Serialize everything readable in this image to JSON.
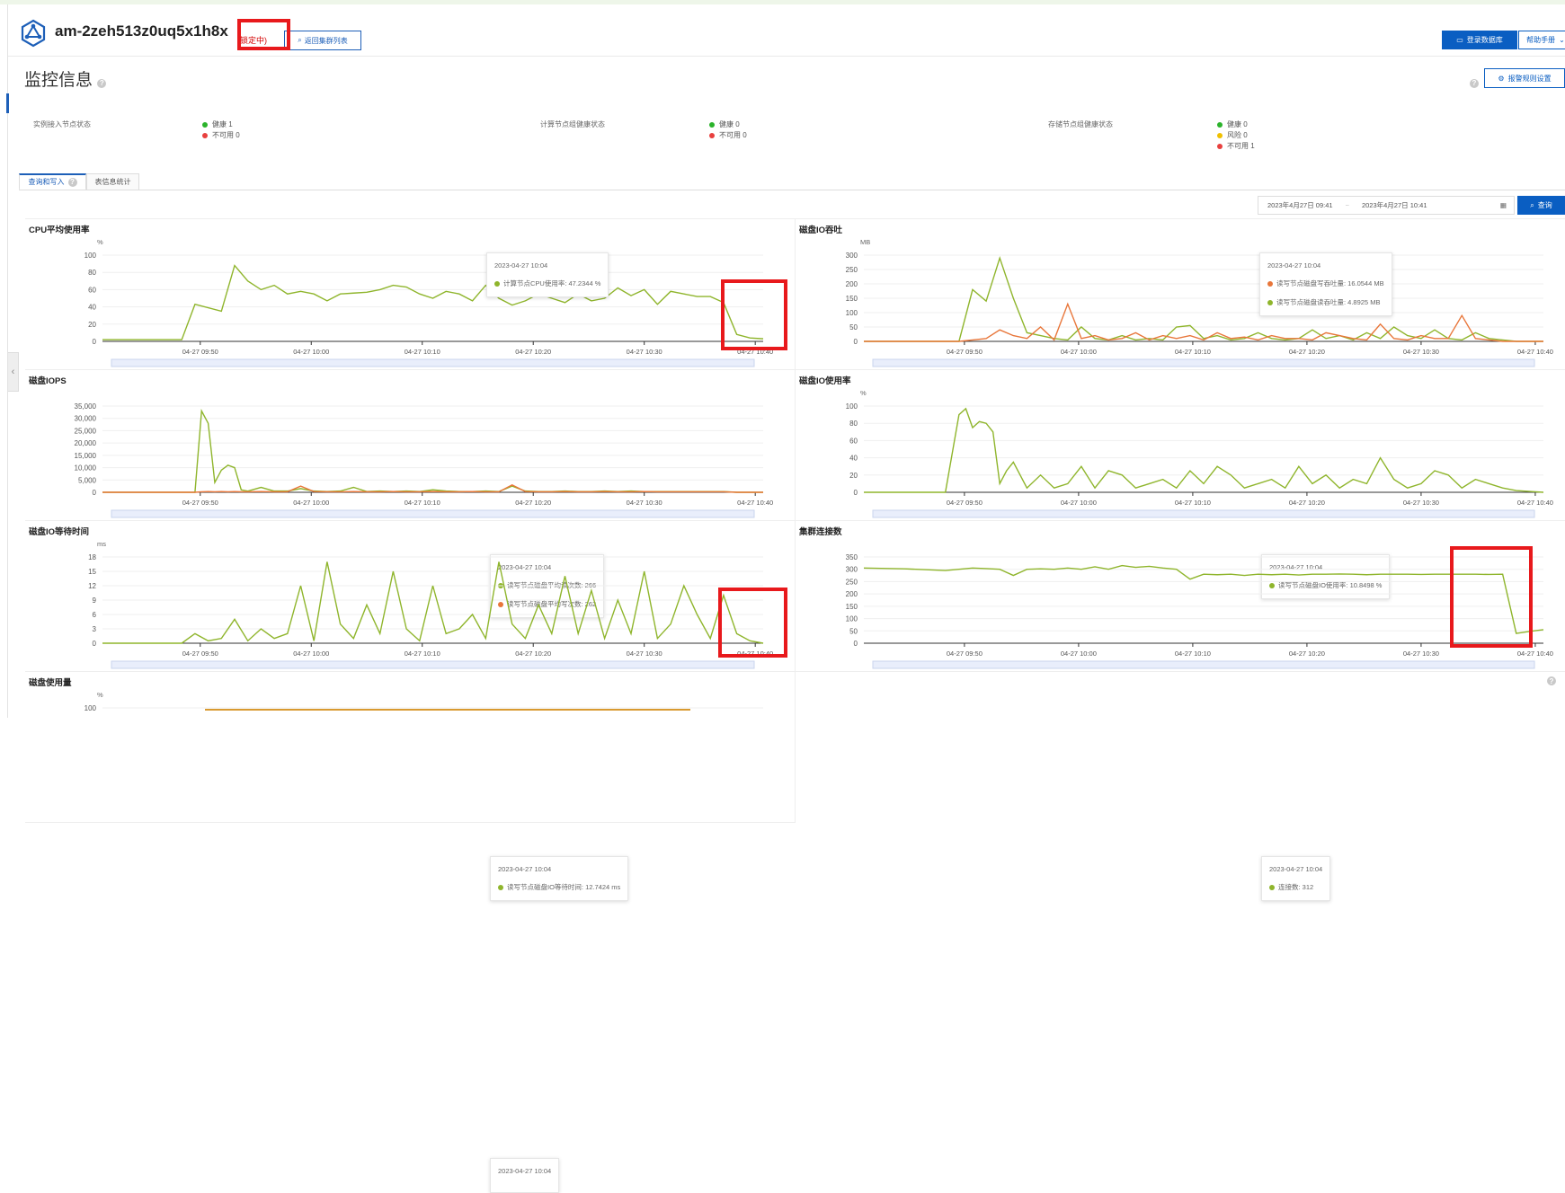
{
  "header": {
    "cluster_id": "am-2zeh513z0uq5x1h8x",
    "lock_status": "(锁定中)",
    "back_button": "返回集群列表",
    "login_button": "登录数据库",
    "help_button": "帮助手册"
  },
  "page": {
    "title": "监控信息",
    "alert_button": "报警规则设置"
  },
  "status": {
    "groups": [
      {
        "label": "实例接入节点状态",
        "items": [
          {
            "text": "健康 1",
            "color": "#2bb32b"
          },
          {
            "text": "不可用 0",
            "color": "#e8403e"
          }
        ]
      },
      {
        "label": "计算节点组健康状态",
        "items": [
          {
            "text": "健康 0",
            "color": "#2bb32b"
          },
          {
            "text": "不可用 0",
            "color": "#e8403e"
          }
        ]
      },
      {
        "label": "存储节点组健康状态",
        "items": [
          {
            "text": "健康 0",
            "color": "#2bb32b"
          },
          {
            "text": "风险 0",
            "color": "#f0c000"
          },
          {
            "text": "不可用 1",
            "color": "#e8403e"
          }
        ]
      }
    ]
  },
  "tabs": [
    {
      "label": "查询和写入"
    },
    {
      "label": "表信息统计"
    }
  ],
  "filter": {
    "start": "2023年4月27日 09:41",
    "end": "2023年4月27日 10:41",
    "query_button": "查询"
  },
  "colors": {
    "green": "#8fb52c",
    "orange": "#e8763a",
    "accent": "#0a5ec2",
    "highlight": "#e8191c"
  },
  "x_ticks_left": [
    "04-27 09:50",
    "04-27 10:00",
    "04-27 10:10",
    "04-27 10:20",
    "04-27 10:30",
    "04-27 10:40"
  ],
  "x_ticks_right": [
    "04-27 09:50",
    "04-27 10:00",
    "04-27 10:10",
    "04-27 10:20",
    "04-27 10:30",
    "04-27 10:40"
  ],
  "charts": [
    {
      "title": "CPU平均使用率",
      "unit": "%",
      "tip": {
        "time": "2023-04-27 10:04",
        "rows": [
          {
            "text": "计算节点CPU使用率: 47.2344 %",
            "color": "#8fb52c"
          }
        ]
      }
    },
    {
      "title": "磁盘IO吞吐",
      "unit": "MB",
      "tip": {
        "time": "2023-04-27 10:04",
        "rows": [
          {
            "text": "读写节点磁盘写吞吐量: 16.0544 MB",
            "color": "#e8763a"
          },
          {
            "text": "读写节点磁盘读吞吐量: 4.8925 MB",
            "color": "#8fb52c"
          }
        ]
      }
    },
    {
      "title": "磁盘IOPS",
      "unit": "",
      "tip": {
        "time": "2023-04-27 10:04",
        "rows": [
          {
            "text": "读写节点磁盘平均读次数: 266",
            "color": "#8fb52c"
          },
          {
            "text": "读写节点磁盘平均写次数: 262",
            "color": "#e8763a"
          }
        ]
      }
    },
    {
      "title": "磁盘IO使用率",
      "unit": "%",
      "tip": {
        "time": "2023-04-27 10:04",
        "rows": [
          {
            "text": "读写节点磁盘IO使用率: 10.8498 %",
            "color": "#8fb52c"
          }
        ]
      }
    },
    {
      "title": "磁盘IO等待时间",
      "unit": "ms",
      "tip": {
        "time": "2023-04-27 10:04",
        "rows": [
          {
            "text": "读写节点磁盘IO等待时间: 12.7424 ms",
            "color": "#8fb52c"
          }
        ]
      }
    },
    {
      "title": "集群连接数",
      "unit": "",
      "tip": {
        "time": "2023-04-27 10:04",
        "rows": [
          {
            "text": "连接数: 312",
            "color": "#8fb52c"
          }
        ]
      }
    },
    {
      "title": "磁盘使用量",
      "unit": "%",
      "tip": {
        "time": "2023-04-27 10:04",
        "rows": []
      }
    }
  ],
  "chart_data": [
    {
      "type": "line",
      "title": "CPU平均使用率",
      "ylabel": "%",
      "ylim": [
        0,
        100
      ],
      "yticks": [
        0,
        20,
        40,
        60,
        80,
        100
      ],
      "x": [
        0,
        4,
        8,
        12,
        14,
        18,
        20,
        22,
        24,
        26,
        28,
        30,
        32,
        34,
        36,
        38,
        40,
        42,
        44,
        46,
        48,
        50,
        52,
        54,
        56,
        58,
        60,
        62,
        64,
        66,
        68,
        70,
        72,
        74,
        76,
        78,
        80,
        82,
        84,
        86,
        88,
        90,
        92,
        94,
        96,
        98,
        100
      ],
      "series": [
        {
          "name": "计算节点CPU使用率",
          "color": "#8fb52c",
          "values": [
            2,
            2,
            2,
            2,
            43,
            35,
            88,
            70,
            60,
            65,
            55,
            58,
            55,
            47,
            55,
            56,
            57,
            60,
            65,
            63,
            55,
            50,
            58,
            55,
            47,
            65,
            50,
            42,
            47,
            55,
            50,
            45,
            55,
            47,
            50,
            62,
            53,
            60,
            43,
            58,
            55,
            52,
            52,
            45,
            8,
            4,
            3
          ]
        }
      ]
    },
    {
      "type": "line",
      "title": "磁盘IO吞吐",
      "ylabel": "MB",
      "ylim": [
        0,
        300
      ],
      "yticks": [
        0,
        50,
        100,
        150,
        200,
        250,
        300
      ],
      "x": [
        0,
        4,
        8,
        12,
        14,
        16,
        18,
        20,
        22,
        24,
        26,
        28,
        30,
        32,
        34,
        36,
        38,
        40,
        42,
        44,
        46,
        48,
        50,
        52,
        54,
        56,
        58,
        60,
        62,
        64,
        66,
        68,
        70,
        72,
        74,
        76,
        78,
        80,
        82,
        84,
        86,
        88,
        90,
        92,
        94,
        96,
        98,
        100
      ],
      "series": [
        {
          "name": "读写节点磁盘读吞吐量",
          "color": "#8fb52c",
          "values": [
            0,
            0,
            0,
            0,
            0,
            180,
            140,
            290,
            150,
            30,
            20,
            10,
            5,
            50,
            10,
            5,
            20,
            5,
            10,
            5,
            50,
            55,
            10,
            20,
            5,
            10,
            30,
            10,
            5,
            10,
            40,
            10,
            20,
            5,
            30,
            10,
            50,
            20,
            10,
            40,
            10,
            5,
            30,
            10,
            5,
            0,
            0,
            0
          ]
        },
        {
          "name": "读写节点磁盘写吞吐量",
          "color": "#e8763a",
          "values": [
            0,
            0,
            0,
            0,
            0,
            5,
            10,
            40,
            20,
            10,
            50,
            5,
            130,
            10,
            20,
            5,
            10,
            30,
            5,
            20,
            10,
            20,
            5,
            30,
            10,
            15,
            5,
            20,
            10,
            10,
            5,
            30,
            20,
            10,
            5,
            60,
            10,
            5,
            20,
            10,
            10,
            90,
            10,
            5,
            0,
            0,
            0,
            0
          ]
        }
      ]
    },
    {
      "type": "line",
      "title": "磁盘IOPS",
      "ylabel": "",
      "ylim": [
        0,
        35000
      ],
      "yticks": [
        0,
        5000,
        10000,
        15000,
        20000,
        25000,
        30000,
        35000
      ],
      "x": [
        0,
        10,
        14,
        15,
        16,
        17,
        18,
        19,
        20,
        21,
        22,
        24,
        26,
        28,
        30,
        32,
        34,
        36,
        38,
        40,
        42,
        44,
        46,
        48,
        50,
        52,
        54,
        56,
        58,
        60,
        62,
        64,
        66,
        68,
        70,
        72,
        74,
        76,
        78,
        80,
        82,
        84,
        86,
        88,
        90,
        92,
        94,
        96,
        98,
        100
      ],
      "series": [
        {
          "name": "读写节点磁盘平均读次数",
          "color": "#8fb52c",
          "values": [
            0,
            0,
            0,
            33000,
            28000,
            4000,
            9000,
            11000,
            10000,
            1000,
            500,
            2000,
            500,
            500,
            1500,
            500,
            300,
            500,
            2000,
            300,
            500,
            300,
            500,
            300,
            1000,
            500,
            300,
            300,
            500,
            300,
            2500,
            500,
            300,
            300,
            500,
            300,
            300,
            500,
            300,
            500,
            300,
            300,
            300,
            300,
            300,
            300,
            300,
            0,
            0,
            0
          ]
        },
        {
          "name": "读写节点磁盘平均写次数",
          "color": "#e8763a",
          "values": [
            0,
            0,
            0,
            200,
            300,
            200,
            300,
            200,
            300,
            200,
            200,
            300,
            200,
            200,
            2500,
            300,
            200,
            200,
            300,
            200,
            200,
            300,
            200,
            200,
            300,
            200,
            200,
            300,
            200,
            200,
            3000,
            300,
            200,
            200,
            300,
            200,
            200,
            300,
            200,
            200,
            300,
            200,
            200,
            200,
            200,
            200,
            200,
            0,
            0,
            0
          ]
        }
      ]
    },
    {
      "type": "line",
      "title": "磁盘IO使用率",
      "ylabel": "%",
      "ylim": [
        0,
        100
      ],
      "yticks": [
        0,
        20,
        40,
        60,
        80,
        100
      ],
      "x": [
        0,
        12,
        14,
        15,
        16,
        17,
        18,
        19,
        20,
        21,
        22,
        24,
        26,
        28,
        30,
        32,
        34,
        36,
        38,
        40,
        42,
        44,
        46,
        48,
        50,
        52,
        54,
        56,
        58,
        60,
        62,
        64,
        66,
        68,
        70,
        72,
        74,
        76,
        78,
        80,
        82,
        84,
        86,
        88,
        90,
        92,
        94,
        96,
        98,
        100
      ],
      "series": [
        {
          "name": "读写节点磁盘IO使用率",
          "color": "#8fb52c",
          "values": [
            0,
            0,
            90,
            97,
            75,
            82,
            80,
            70,
            10,
            25,
            35,
            5,
            20,
            5,
            10,
            30,
            5,
            25,
            20,
            5,
            10,
            15,
            5,
            25,
            10,
            30,
            20,
            5,
            10,
            15,
            5,
            30,
            10,
            20,
            5,
            15,
            10,
            40,
            15,
            5,
            10,
            25,
            20,
            5,
            15,
            10,
            5,
            2,
            1,
            0
          ]
        }
      ]
    },
    {
      "type": "line",
      "title": "磁盘IO等待时间",
      "ylabel": "ms",
      "ylim": [
        0,
        18
      ],
      "yticks": [
        0,
        3,
        6,
        9,
        12,
        15,
        18
      ],
      "x": [
        0,
        12,
        14,
        16,
        18,
        20,
        22,
        24,
        26,
        28,
        30,
        32,
        34,
        36,
        38,
        40,
        42,
        44,
        46,
        48,
        50,
        52,
        54,
        56,
        58,
        60,
        62,
        64,
        66,
        68,
        70,
        72,
        74,
        76,
        78,
        80,
        82,
        84,
        86,
        88,
        90,
        92,
        94,
        96,
        98,
        100
      ],
      "series": [
        {
          "name": "读写节点磁盘IO等待时间",
          "color": "#8fb52c",
          "values": [
            0,
            0,
            2,
            0.5,
            1,
            5,
            0.5,
            3,
            1,
            2,
            12,
            0.5,
            17,
            4,
            1,
            8,
            2,
            15,
            3,
            0.5,
            12,
            2,
            3,
            6,
            1,
            17,
            4,
            1,
            8,
            2,
            14,
            2,
            11,
            1,
            9,
            2,
            15,
            1,
            4,
            12,
            6,
            1,
            10,
            2,
            0.5,
            0
          ]
        }
      ]
    },
    {
      "type": "line",
      "title": "集群连接数",
      "ylabel": "",
      "ylim": [
        0,
        350
      ],
      "yticks": [
        0,
        50,
        100,
        150,
        200,
        250,
        300,
        350
      ],
      "x": [
        0,
        6,
        12,
        14,
        16,
        18,
        20,
        22,
        24,
        26,
        28,
        30,
        32,
        34,
        36,
        38,
        40,
        42,
        44,
        46,
        48,
        50,
        52,
        54,
        56,
        58,
        60,
        62,
        64,
        66,
        68,
        70,
        72,
        74,
        76,
        78,
        80,
        82,
        84,
        86,
        88,
        90,
        92,
        94,
        96,
        98,
        100
      ],
      "series": [
        {
          "name": "连接数",
          "color": "#8fb52c",
          "values": [
            305,
            302,
            295,
            300,
            305,
            303,
            300,
            275,
            300,
            302,
            300,
            305,
            300,
            310,
            300,
            315,
            308,
            312,
            305,
            300,
            260,
            280,
            278,
            280,
            275,
            280,
            278,
            280,
            277,
            280,
            280,
            281,
            280,
            278,
            280,
            280,
            280,
            279,
            280,
            280,
            280,
            280,
            279,
            280,
            40,
            48,
            55
          ]
        }
      ]
    }
  ]
}
